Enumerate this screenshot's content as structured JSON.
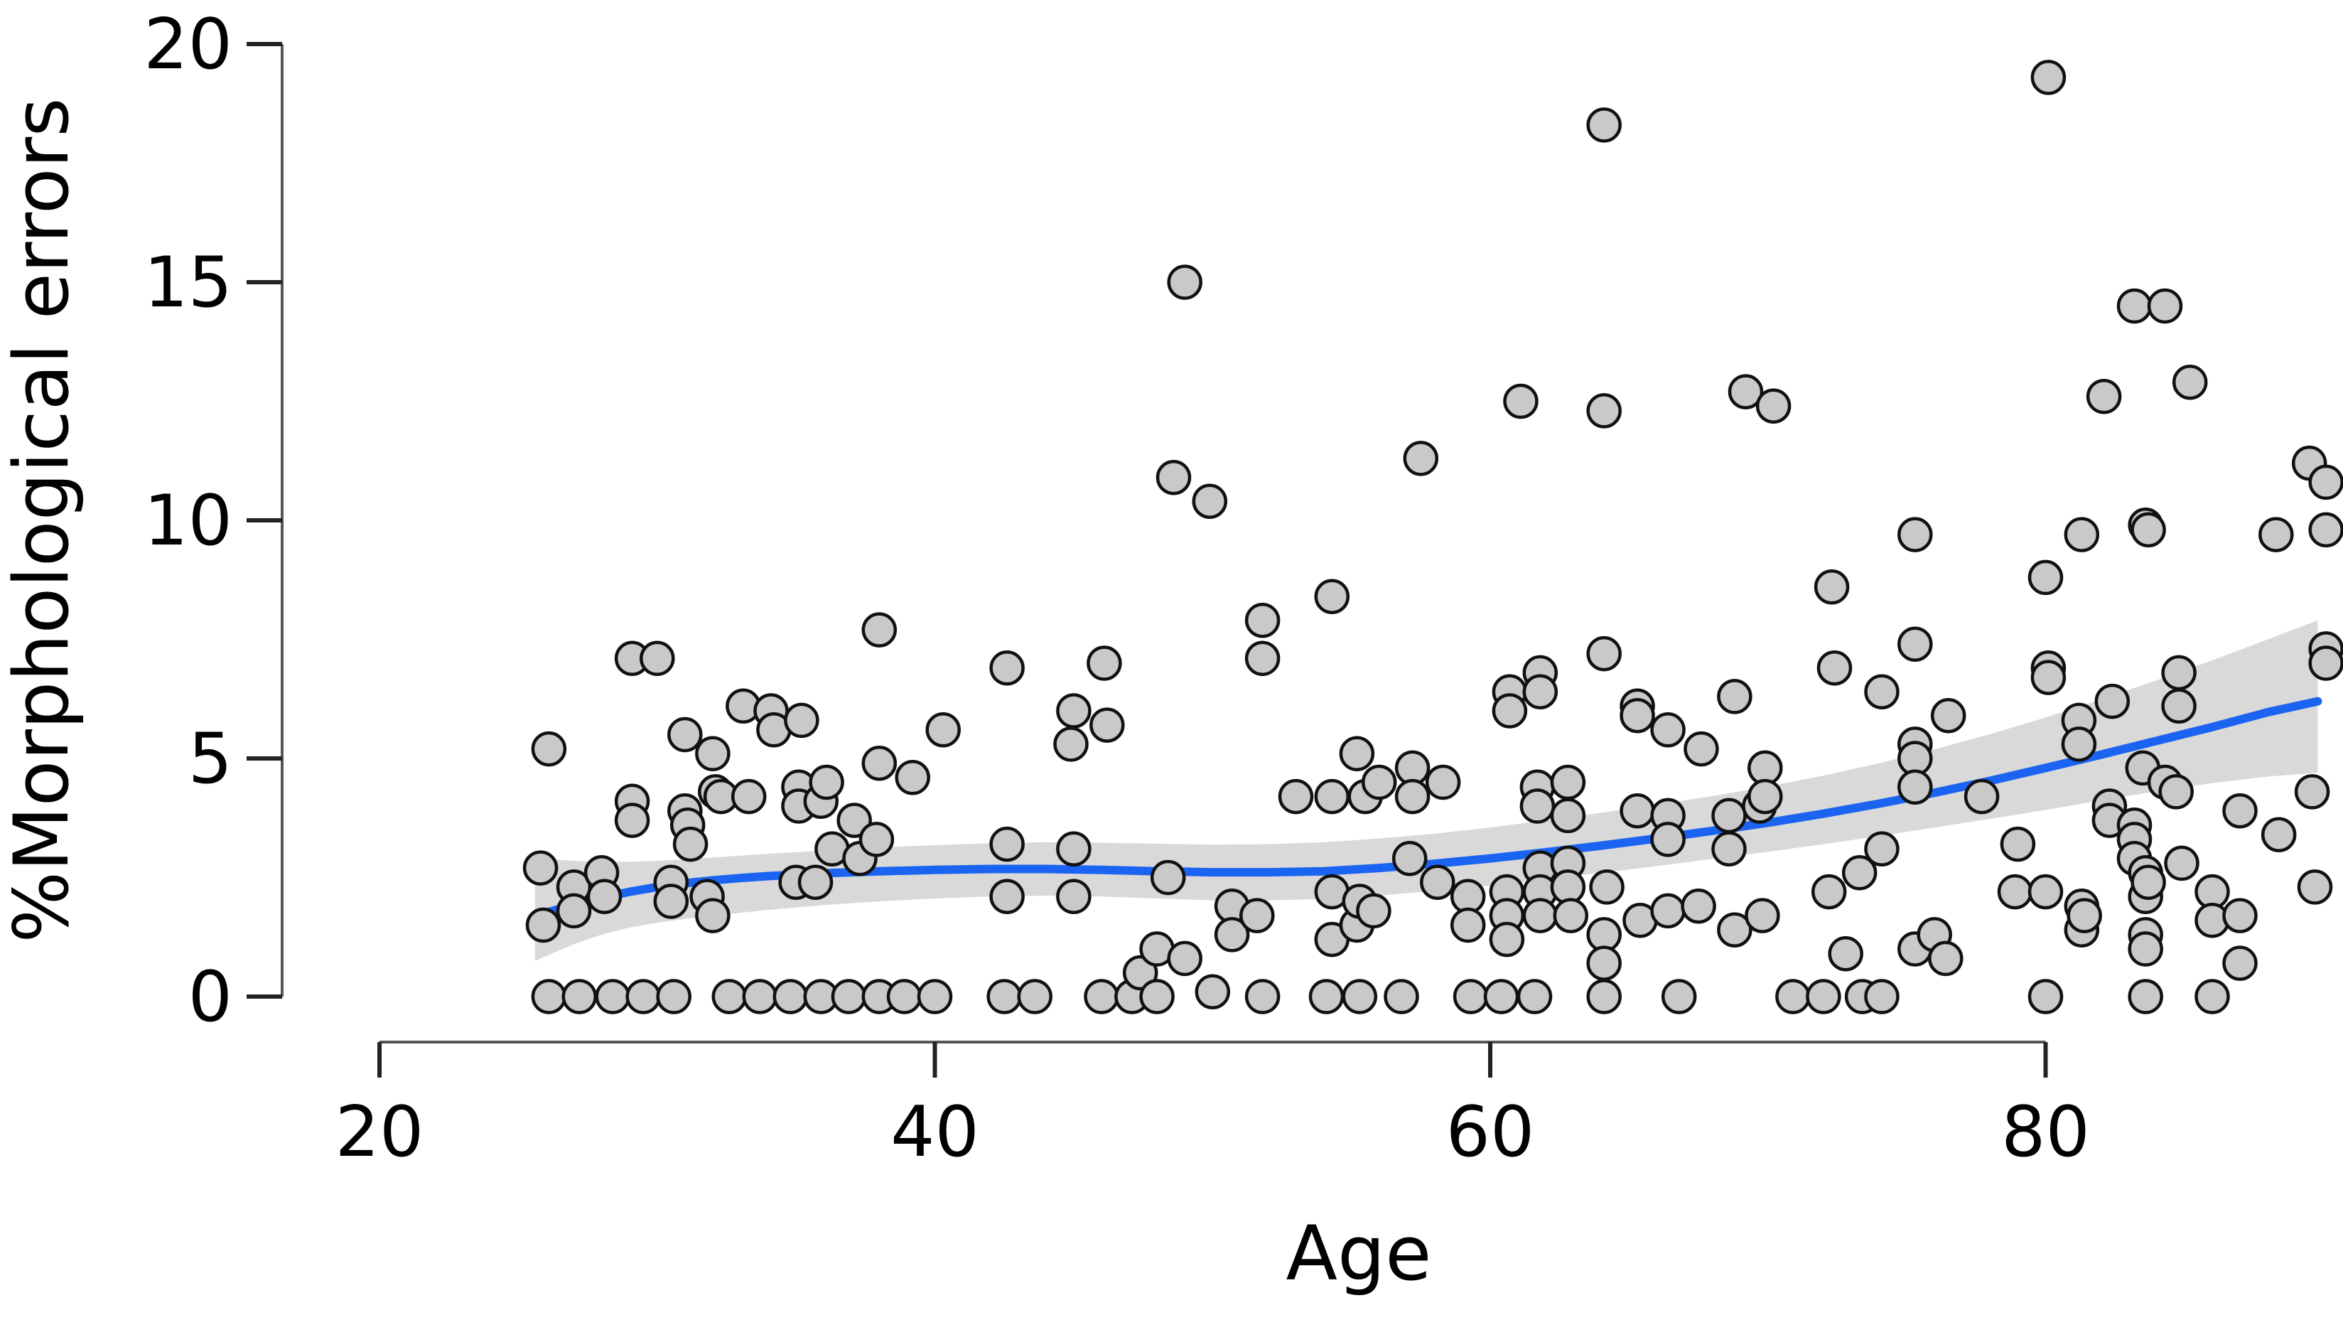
{
  "chart_data": {
    "type": "scatter",
    "title": "",
    "xlabel": "Age",
    "ylabel": "%Morphological errors",
    "x_ticks": [
      20,
      40,
      60,
      80
    ],
    "y_ticks": [
      0,
      5,
      10,
      15,
      20
    ],
    "xlim": [
      20,
      91
    ],
    "ylim": [
      0,
      20
    ],
    "grid": false,
    "legend": null,
    "colors": {
      "point_fill": "#c9c9c9",
      "point_stroke": "#111111",
      "smooth_line": "#1b64f1",
      "band_fill": "#000000",
      "band_opacity": 0.15,
      "axis_line": "#555555",
      "tick": "#222222",
      "background": "#ffffff"
    },
    "points": [
      [
        25.8,
        2.7
      ],
      [
        25.9,
        1.5
      ],
      [
        26.1,
        5.2
      ],
      [
        26.1,
        0
      ],
      [
        27.0,
        2.3
      ],
      [
        27.0,
        1.8
      ],
      [
        27.2,
        0
      ],
      [
        28.0,
        2.6
      ],
      [
        28.1,
        2.1
      ],
      [
        28.4,
        0
      ],
      [
        29.1,
        7.1
      ],
      [
        29.1,
        4.1
      ],
      [
        29.1,
        3.7
      ],
      [
        29.5,
        0
      ],
      [
        30.0,
        7.1
      ],
      [
        30.5,
        2.4
      ],
      [
        30.5,
        2.0
      ],
      [
        30.6,
        0
      ],
      [
        31.0,
        5.5
      ],
      [
        31.0,
        3.9
      ],
      [
        31.1,
        3.6
      ],
      [
        31.2,
        3.2
      ],
      [
        31.8,
        2.1
      ],
      [
        32.0,
        5.1
      ],
      [
        32.0,
        1.7
      ],
      [
        32.1,
        4.3
      ],
      [
        32.3,
        4.2
      ],
      [
        32.6,
        0
      ],
      [
        33.1,
        6.1
      ],
      [
        33.3,
        4.2
      ],
      [
        33.7,
        0
      ],
      [
        34.1,
        6.0
      ],
      [
        34.2,
        5.6
      ],
      [
        34.8,
        0
      ],
      [
        35.0,
        2.4
      ],
      [
        35.1,
        4.4
      ],
      [
        35.1,
        4.0
      ],
      [
        35.2,
        5.8
      ],
      [
        35.7,
        2.4
      ],
      [
        35.9,
        4.1
      ],
      [
        35.9,
        0
      ],
      [
        36.1,
        4.5
      ],
      [
        36.3,
        3.1
      ],
      [
        36.9,
        0
      ],
      [
        37.1,
        3.7
      ],
      [
        37.3,
        2.9
      ],
      [
        37.9,
        3.3
      ],
      [
        38.0,
        7.7
      ],
      [
        38.0,
        4.9
      ],
      [
        38.0,
        0
      ],
      [
        38.9,
        0
      ],
      [
        39.2,
        4.6
      ],
      [
        40.0,
        0
      ],
      [
        40.3,
        5.6
      ],
      [
        42.5,
        0
      ],
      [
        42.6,
        6.9
      ],
      [
        42.6,
        3.2
      ],
      [
        42.6,
        2.1
      ],
      [
        43.6,
        0
      ],
      [
        44.9,
        5.3
      ],
      [
        45.0,
        6.0
      ],
      [
        45.0,
        3.1
      ],
      [
        45.0,
        2.1
      ],
      [
        46.0,
        0
      ],
      [
        46.1,
        7.0
      ],
      [
        46.2,
        5.7
      ],
      [
        47.1,
        0
      ],
      [
        47.4,
        0.5
      ],
      [
        48.0,
        1.0
      ],
      [
        48.0,
        0
      ],
      [
        48.4,
        2.5
      ],
      [
        48.6,
        10.9
      ],
      [
        49.0,
        15.0
      ],
      [
        49.0,
        0.8
      ],
      [
        49.9,
        10.4
      ],
      [
        50.0,
        0.1
      ],
      [
        50.7,
        1.9
      ],
      [
        50.7,
        1.3
      ],
      [
        51.6,
        1.7
      ],
      [
        51.8,
        7.9
      ],
      [
        51.8,
        7.1
      ],
      [
        51.8,
        0
      ],
      [
        53.0,
        4.2
      ],
      [
        54.1,
        0
      ],
      [
        54.3,
        8.4
      ],
      [
        54.3,
        4.2
      ],
      [
        54.3,
        2.2
      ],
      [
        54.3,
        1.2
      ],
      [
        55.2,
        5.1
      ],
      [
        55.2,
        1.5
      ],
      [
        55.3,
        2.0
      ],
      [
        55.3,
        0
      ],
      [
        55.5,
        4.2
      ],
      [
        55.8,
        1.8
      ],
      [
        56.0,
        4.5
      ],
      [
        56.8,
        0
      ],
      [
        57.1,
        2.9
      ],
      [
        57.2,
        4.8
      ],
      [
        57.2,
        4.2
      ],
      [
        57.5,
        11.3
      ],
      [
        58.1,
        2.4
      ],
      [
        58.3,
        4.5
      ],
      [
        59.2,
        2.1
      ],
      [
        59.2,
        1.5
      ],
      [
        59.3,
        0
      ],
      [
        60.4,
        0
      ],
      [
        60.6,
        2.2
      ],
      [
        60.6,
        1.7
      ],
      [
        60.6,
        1.2
      ],
      [
        60.7,
        6.4
      ],
      [
        60.7,
        6.0
      ],
      [
        61.1,
        12.5
      ],
      [
        61.6,
        0
      ],
      [
        61.7,
        4.4
      ],
      [
        61.7,
        4.0
      ],
      [
        61.8,
        6.8
      ],
      [
        61.8,
        6.4
      ],
      [
        61.8,
        2.7
      ],
      [
        61.8,
        2.2
      ],
      [
        61.8,
        1.7
      ],
      [
        62.8,
        4.5
      ],
      [
        62.8,
        3.8
      ],
      [
        62.8,
        2.8
      ],
      [
        62.8,
        2.3
      ],
      [
        62.9,
        1.7
      ],
      [
        64.1,
        18.3
      ],
      [
        64.1,
        12.3
      ],
      [
        64.1,
        7.2
      ],
      [
        64.1,
        1.3
      ],
      [
        64.1,
        0.7
      ],
      [
        64.1,
        0
      ],
      [
        64.2,
        2.3
      ],
      [
        65.3,
        6.1
      ],
      [
        65.3,
        5.9
      ],
      [
        65.3,
        3.9
      ],
      [
        65.4,
        1.6
      ],
      [
        66.4,
        5.6
      ],
      [
        66.4,
        3.8
      ],
      [
        66.4,
        3.3
      ],
      [
        66.4,
        1.8
      ],
      [
        66.8,
        0
      ],
      [
        67.5,
        1.9
      ],
      [
        67.6,
        5.2
      ],
      [
        68.6,
        3.8
      ],
      [
        68.6,
        3.1
      ],
      [
        68.8,
        6.3
      ],
      [
        68.8,
        1.4
      ],
      [
        69.2,
        12.7
      ],
      [
        69.7,
        4.0
      ],
      [
        69.8,
        1.7
      ],
      [
        69.9,
        4.8
      ],
      [
        69.9,
        4.2
      ],
      [
        70.2,
        12.4
      ],
      [
        70.9,
        0
      ],
      [
        72.0,
        0
      ],
      [
        72.2,
        2.2
      ],
      [
        72.3,
        8.6
      ],
      [
        72.4,
        6.9
      ],
      [
        72.8,
        0.9
      ],
      [
        73.3,
        2.6
      ],
      [
        73.4,
        0
      ],
      [
        74.1,
        6.4
      ],
      [
        74.1,
        3.1
      ],
      [
        74.1,
        0
      ],
      [
        75.3,
        9.7
      ],
      [
        75.3,
        7.4
      ],
      [
        75.3,
        5.3
      ],
      [
        75.3,
        5.0
      ],
      [
        75.3,
        4.4
      ],
      [
        75.3,
        1.0
      ],
      [
        76.0,
        1.3
      ],
      [
        76.4,
        0.8
      ],
      [
        76.5,
        5.9
      ],
      [
        77.7,
        4.2
      ],
      [
        78.9,
        2.2
      ],
      [
        79.0,
        3.2
      ],
      [
        80.0,
        8.8
      ],
      [
        80.0,
        2.2
      ],
      [
        80.0,
        0
      ],
      [
        80.1,
        19.3
      ],
      [
        80.1,
        6.9
      ],
      [
        80.1,
        6.7
      ],
      [
        81.2,
        5.8
      ],
      [
        81.2,
        5.3
      ],
      [
        81.3,
        9.7
      ],
      [
        81.3,
        1.9
      ],
      [
        81.3,
        1.4
      ],
      [
        81.4,
        1.7
      ],
      [
        82.1,
        12.6
      ],
      [
        82.3,
        4.0
      ],
      [
        82.3,
        3.7
      ],
      [
        82.4,
        6.2
      ],
      [
        83.2,
        14.5
      ],
      [
        83.2,
        3.6
      ],
      [
        83.2,
        3.3
      ],
      [
        83.2,
        2.9
      ],
      [
        83.5,
        4.8
      ],
      [
        83.6,
        9.9
      ],
      [
        83.7,
        9.8
      ],
      [
        83.6,
        2.6
      ],
      [
        83.6,
        2.1
      ],
      [
        83.7,
        2.4
      ],
      [
        83.6,
        1.3
      ],
      [
        83.6,
        1.0
      ],
      [
        83.6,
        0
      ],
      [
        84.3,
        14.5
      ],
      [
        84.3,
        4.5
      ],
      [
        84.7,
        4.3
      ],
      [
        84.8,
        6.8
      ],
      [
        84.8,
        6.1
      ],
      [
        84.9,
        2.8
      ],
      [
        85.2,
        12.9
      ],
      [
        86.0,
        2.2
      ],
      [
        86.0,
        1.6
      ],
      [
        86.0,
        0
      ],
      [
        87.0,
        3.9
      ],
      [
        87.0,
        1.7
      ],
      [
        87.0,
        0.7
      ],
      [
        88.3,
        9.7
      ],
      [
        88.4,
        3.4
      ],
      [
        89.5,
        11.2
      ],
      [
        89.6,
        4.3
      ],
      [
        89.7,
        2.3
      ],
      [
        90.1,
        10.8
      ],
      [
        90.1,
        9.8
      ],
      [
        90.1,
        7.3
      ],
      [
        90.1,
        7.0
      ]
    ],
    "smooth_line": {
      "x": [
        25.6,
        27,
        28,
        29,
        30,
        31,
        32,
        33,
        34,
        35,
        36,
        38,
        40,
        42,
        44,
        46,
        48,
        50,
        52,
        54,
        56,
        58,
        60,
        62,
        64,
        66,
        68,
        70,
        72,
        74,
        76,
        78,
        80,
        82,
        84,
        86,
        88,
        89.8
      ],
      "y": [
        1.7,
        1.92,
        2.07,
        2.2,
        2.3,
        2.38,
        2.44,
        2.49,
        2.53,
        2.56,
        2.59,
        2.63,
        2.66,
        2.68,
        2.68,
        2.66,
        2.63,
        2.61,
        2.61,
        2.63,
        2.7,
        2.79,
        2.9,
        3.03,
        3.17,
        3.32,
        3.48,
        3.65,
        3.84,
        4.05,
        4.28,
        4.53,
        4.8,
        5.08,
        5.37,
        5.66,
        5.97,
        6.2
      ]
    },
    "confidence_band": {
      "x": [
        25.6,
        27,
        28,
        29,
        30,
        31,
        32,
        33,
        34,
        35,
        36,
        38,
        40,
        42,
        44,
        46,
        48,
        50,
        52,
        54,
        56,
        58,
        60,
        62,
        64,
        66,
        68,
        70,
        72,
        74,
        76,
        78,
        80,
        82,
        84,
        86,
        88,
        89.8
      ],
      "lower": [
        0.75,
        1.1,
        1.3,
        1.45,
        1.55,
        1.63,
        1.7,
        1.76,
        1.82,
        1.87,
        1.92,
        2.0,
        2.06,
        2.1,
        2.12,
        2.1,
        2.06,
        2.02,
        2.02,
        2.05,
        2.12,
        2.22,
        2.33,
        2.46,
        2.6,
        2.74,
        2.89,
        3.04,
        3.2,
        3.37,
        3.55,
        3.73,
        3.92,
        4.12,
        4.31,
        4.48,
        4.62,
        4.7
      ],
      "upper": [
        2.9,
        2.85,
        2.83,
        2.83,
        2.85,
        2.88,
        2.92,
        2.96,
        3.0,
        3.03,
        3.07,
        3.13,
        3.18,
        3.22,
        3.24,
        3.23,
        3.21,
        3.19,
        3.2,
        3.24,
        3.32,
        3.42,
        3.55,
        3.7,
        3.86,
        4.03,
        4.21,
        4.41,
        4.64,
        4.9,
        5.19,
        5.51,
        5.86,
        6.24,
        6.64,
        7.06,
        7.5,
        7.9
      ]
    }
  }
}
